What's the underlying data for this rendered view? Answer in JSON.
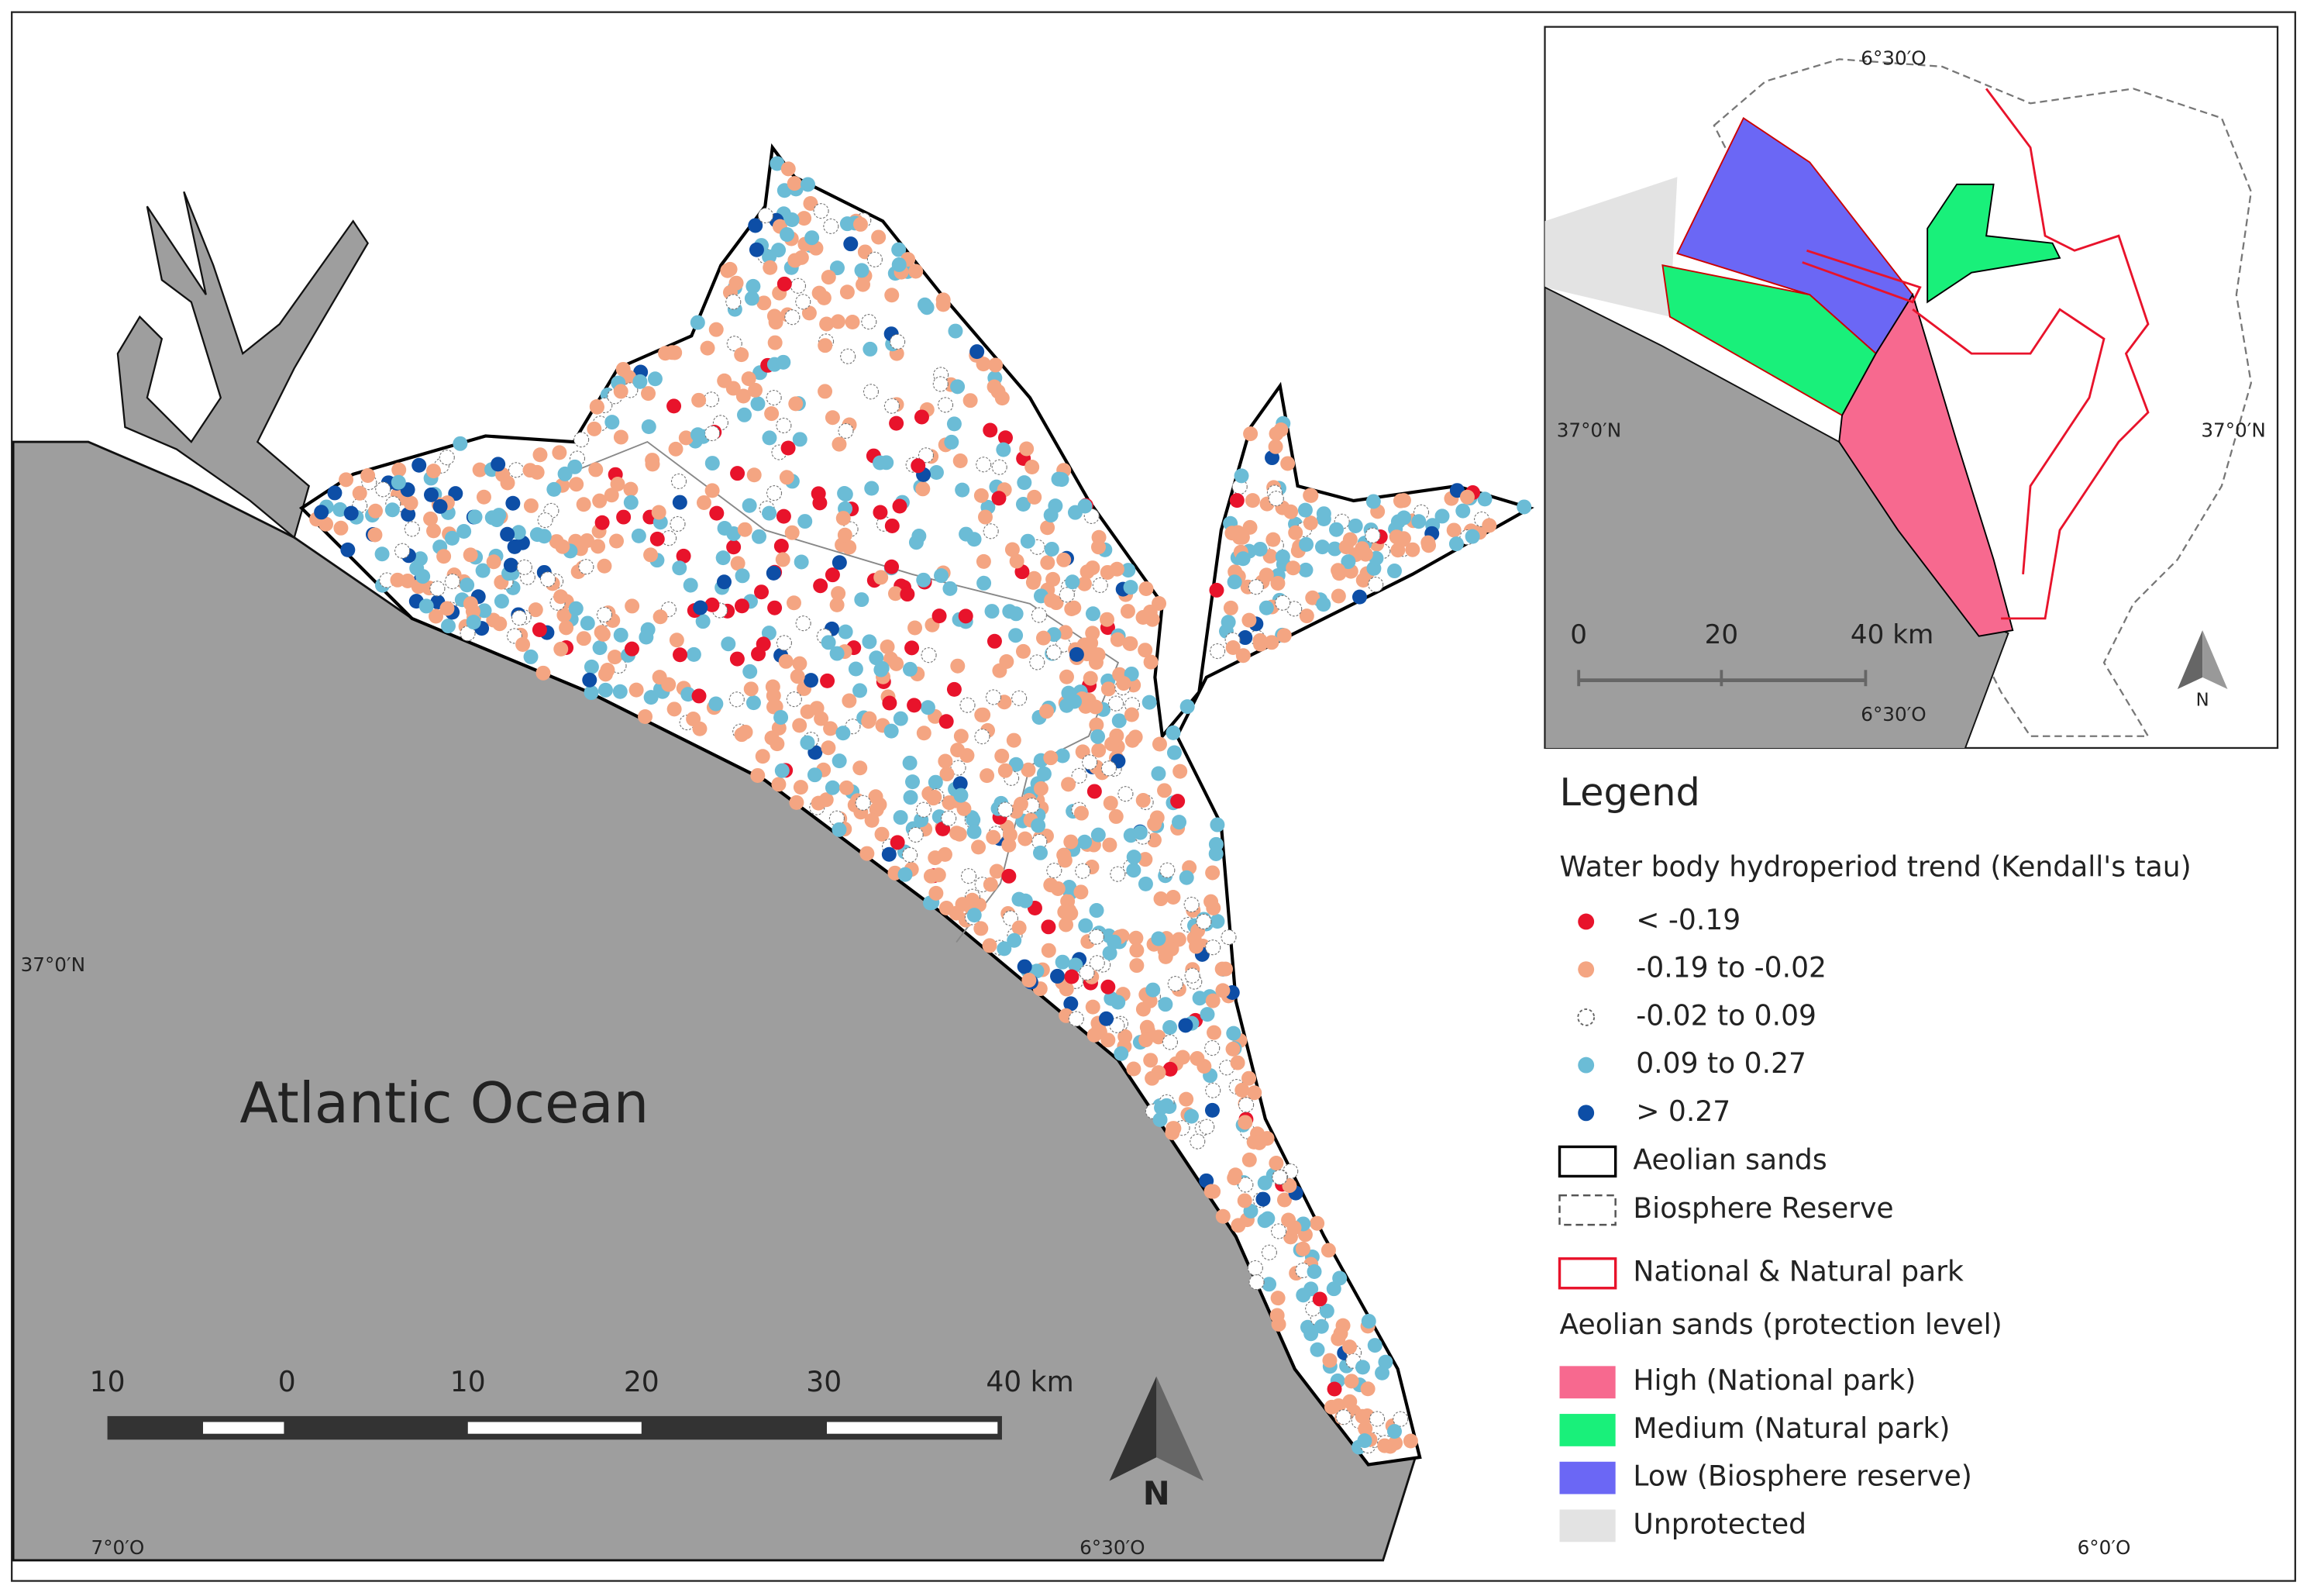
{
  "map": {
    "ocean_label": "Atlantic Ocean",
    "north_label": "N",
    "scale_labels": [
      "10",
      "0",
      "10",
      "20",
      "30",
      "40 km"
    ],
    "lat_label": "37°0′N",
    "lon_labels": [
      "7°0′O",
      "6°30′O",
      "6°0′O"
    ]
  },
  "inset": {
    "lon_top": "6°30′O",
    "lon_bottom": "6°30′O",
    "lat_left": "37°0′N",
    "lat_right": "37°0′N",
    "scale_labels": [
      "0",
      "20",
      "40 km"
    ],
    "north_label": "N"
  },
  "legend": {
    "title": "Legend",
    "trend_title": "Water body hydroperiod trend (Kendall's tau)",
    "trend_classes": [
      {
        "label": "< -0.19",
        "color": "#e8132b"
      },
      {
        "label": "-0.19  to -0.02",
        "color": "#f4a582"
      },
      {
        "label": "-0.02 to  0.09",
        "color": "#ffffff"
      },
      {
        "label": "0.09 to  0.27",
        "color": "#6bbcd6"
      },
      {
        "label": "> 0.27",
        "color": "#0d4ea6"
      }
    ],
    "boundaries": [
      {
        "label": "Aeolian sands",
        "color": "#000000"
      },
      {
        "label": "Biosphere Reserve",
        "color": "#555555"
      },
      {
        "label": "National & Natural park",
        "color": "#e8132b"
      }
    ],
    "protection_title": "Aeolian sands (protection level)",
    "protection_levels": [
      {
        "label": "High (National park)",
        "color": "#f7698f"
      },
      {
        "label": "Medium (Natural park)",
        "color": "#19f07a"
      },
      {
        "label": "Low (Biosphere reserve)",
        "color": "#6b67f5"
      },
      {
        "label": "Unprotected",
        "color": "#e3e3e3"
      }
    ]
  }
}
